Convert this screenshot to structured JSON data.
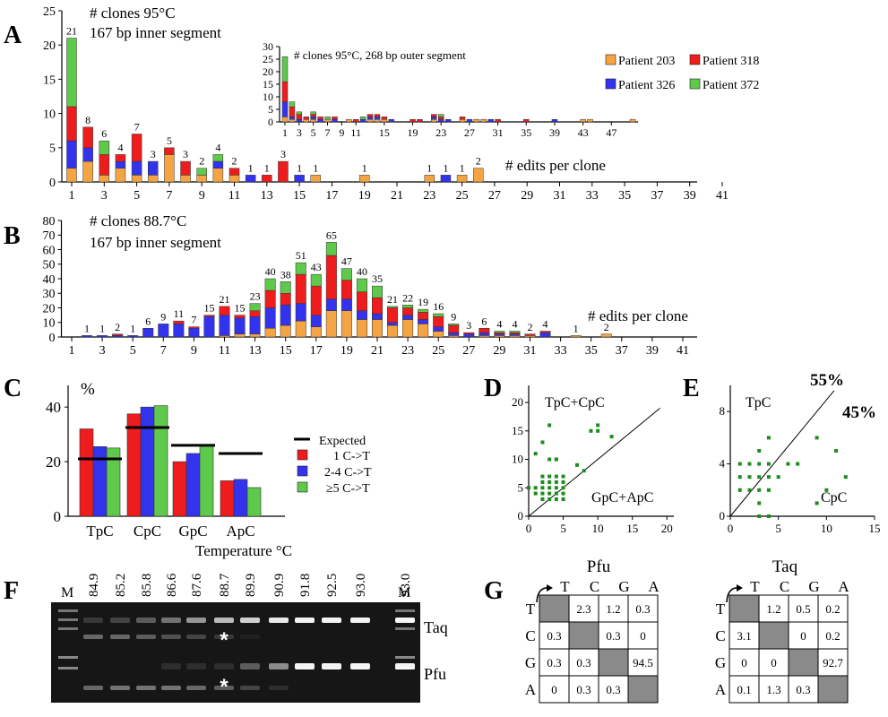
{
  "colors": {
    "p203": "#f5a443",
    "p318": "#ee1c1c",
    "p326": "#3333ee",
    "p372": "#5ec94a",
    "dot": "#1e8c1e",
    "gel_bg": "#161616"
  },
  "A": {
    "letter": "A",
    "title": [
      "# clones 95°C",
      "167 bp inner segment"
    ],
    "xlabel": "# edits per clone",
    "legend": [
      {
        "name": "Patient 203",
        "color": "#f5a443"
      },
      {
        "name": "Patient 318",
        "color": "#ee1c1c"
      },
      {
        "name": "Patient 326",
        "color": "#3333ee"
      },
      {
        "name": "Patient 372",
        "color": "#5ec94a"
      }
    ]
  },
  "A_inset": {
    "title": "# clones 95°C,  268 bp outer segment"
  },
  "B": {
    "letter": "B",
    "title": [
      "# clones 88.7°C",
      "167 bp inner segment"
    ],
    "xlabel": "# edits per clone"
  },
  "C": {
    "letter": "C",
    "ylabel": "%",
    "legend": [
      "Expected",
      "1 C->T",
      "2-4 C->T",
      "≥5 C->T"
    ]
  },
  "D": {
    "letter": "D",
    "label_top": "TpC+CpC",
    "label_bottom": "GpC+ApC"
  },
  "E": {
    "letter": "E",
    "label_top": "TpC",
    "label_bottom": "CpC",
    "pct_top": "55%",
    "pct_bottom": "45%"
  },
  "F": {
    "letter": "F",
    "title": "Temperature °C",
    "temps": [
      "84.9",
      "85.2",
      "85.8",
      "86.6",
      "87.6",
      "88.7",
      "89.9",
      "90.9",
      "91.8",
      "92.5",
      "93.0",
      "93.0"
    ],
    "marker": "M",
    "rows": [
      "Taq",
      "Pfu"
    ],
    "star": "*"
  },
  "G": {
    "letter": "G",
    "tables": [
      {
        "name": "Pfu",
        "cols": [
          "T",
          "C",
          "G",
          "A"
        ],
        "rows": [
          "T",
          "C",
          "G",
          "A"
        ],
        "cells": [
          [
            "",
            "2.3",
            "1.2",
            "0.3"
          ],
          [
            "0.3",
            "",
            "0.3",
            "0"
          ],
          [
            "0.3",
            "0.3",
            "",
            "94.5"
          ],
          [
            "0",
            "0.3",
            "0.3",
            ""
          ]
        ]
      },
      {
        "name": "Taq",
        "cols": [
          "T",
          "C",
          "G",
          "A"
        ],
        "rows": [
          "T",
          "C",
          "G",
          "A"
        ],
        "cells": [
          [
            "",
            "1.2",
            "0.5",
            "0.2"
          ],
          [
            "3.1",
            "",
            "0",
            "0.2"
          ],
          [
            "0",
            "0",
            "",
            "92.7"
          ],
          [
            "0.1",
            "1.3",
            "0.3",
            ""
          ]
        ]
      }
    ]
  },
  "chart_data": [
    {
      "type": "bar",
      "id": "A",
      "stacked": true,
      "x": [
        1,
        2,
        3,
        4,
        5,
        6,
        7,
        8,
        9,
        10,
        11,
        12,
        13,
        14,
        15,
        16,
        19,
        23,
        24,
        25,
        26
      ],
      "ylim": [
        0,
        25
      ],
      "yticks": [
        0,
        5,
        10,
        15,
        20,
        25
      ],
      "xticks": [
        1,
        3,
        5,
        7,
        9,
        11,
        13,
        15,
        17,
        19,
        21,
        23,
        25,
        27,
        29,
        31,
        33,
        35,
        37,
        39,
        41
      ],
      "totals": [
        21,
        8,
        6,
        4,
        7,
        3,
        5,
        3,
        2,
        4,
        2,
        1,
        1,
        3,
        1,
        1,
        1,
        1,
        1,
        1,
        2
      ],
      "series": [
        {
          "name": "Patient 203",
          "values": [
            2,
            3,
            1,
            2,
            1,
            1,
            4,
            1,
            1,
            2,
            1,
            0,
            0,
            0,
            0,
            1,
            1,
            1,
            0,
            1,
            2
          ]
        },
        {
          "name": "Patient 326",
          "values": [
            4,
            2,
            0,
            1,
            2,
            2,
            0,
            0,
            0,
            1,
            0,
            1,
            0,
            0,
            1,
            0,
            0,
            0,
            1,
            0,
            0
          ]
        },
        {
          "name": "Patient 318",
          "values": [
            5,
            3,
            3,
            1,
            4,
            0,
            1,
            2,
            0,
            0,
            1,
            0,
            1,
            3,
            0,
            0,
            0,
            0,
            0,
            0,
            0
          ]
        },
        {
          "name": "Patient 372",
          "values": [
            10,
            0,
            2,
            0,
            0,
            0,
            0,
            0,
            1,
            1,
            0,
            0,
            0,
            0,
            0,
            0,
            0,
            0,
            0,
            0,
            0
          ]
        }
      ]
    },
    {
      "type": "bar",
      "id": "A_inset",
      "stacked": true,
      "x": [
        1,
        2,
        3,
        4,
        5,
        6,
        7,
        8,
        10,
        11,
        12,
        13,
        14,
        15,
        16,
        19,
        20,
        22,
        23,
        24,
        26,
        27,
        28,
        29,
        30,
        31,
        35,
        39,
        43,
        44,
        50
      ],
      "ylim": [
        0,
        30
      ],
      "yticks": [
        0,
        5,
        10,
        15,
        20,
        25,
        30
      ],
      "xticks": [
        1,
        3,
        5,
        7,
        9,
        11,
        15,
        19,
        23,
        27,
        31,
        35,
        39,
        43,
        47
      ],
      "series": [
        {
          "name": "Patient 203",
          "values": [
            2,
            1,
            0,
            1,
            1,
            0,
            1,
            0,
            1,
            0,
            0,
            1,
            1,
            1,
            0,
            0,
            0,
            1,
            0,
            0,
            1,
            0,
            1,
            1,
            0,
            0,
            0,
            0,
            1,
            1,
            1
          ]
        },
        {
          "name": "Patient 326",
          "values": [
            6,
            1,
            1,
            0,
            1,
            1,
            0,
            1,
            0,
            0,
            1,
            1,
            1,
            0,
            1,
            0,
            0,
            1,
            1,
            1,
            0,
            1,
            0,
            0,
            1,
            0,
            0,
            1,
            0,
            0,
            0
          ]
        },
        {
          "name": "Patient 318",
          "values": [
            8,
            4,
            2,
            1,
            1,
            1,
            0,
            1,
            0,
            1,
            0,
            1,
            1,
            1,
            0,
            1,
            1,
            1,
            1,
            0,
            1,
            0,
            0,
            0,
            0,
            1,
            1,
            0,
            0,
            0,
            0
          ]
        },
        {
          "name": "Patient 372",
          "values": [
            10,
            2,
            1,
            0,
            1,
            0,
            1,
            0,
            0,
            0,
            1,
            0,
            0,
            0,
            0,
            0,
            0,
            0,
            1,
            0,
            0,
            0,
            0,
            0,
            0,
            0,
            0,
            0,
            0,
            0,
            0
          ]
        }
      ]
    },
    {
      "type": "bar",
      "id": "B",
      "stacked": true,
      "x": [
        2,
        3,
        4,
        5,
        6,
        7,
        8,
        9,
        10,
        11,
        12,
        13,
        14,
        15,
        16,
        17,
        18,
        19,
        20,
        21,
        22,
        23,
        24,
        25,
        26,
        27,
        28,
        29,
        30,
        31,
        32,
        34,
        36
      ],
      "ylim": [
        0,
        80
      ],
      "yticks": [
        0,
        10,
        20,
        30,
        40,
        50,
        60,
        70,
        80
      ],
      "xticks": [
        1,
        3,
        5,
        7,
        9,
        11,
        13,
        15,
        17,
        19,
        21,
        23,
        25,
        27,
        29,
        31,
        33,
        35,
        37,
        39,
        41
      ],
      "totals": [
        1,
        1,
        2,
        1,
        6,
        9,
        11,
        7,
        15,
        21,
        15,
        23,
        40,
        38,
        51,
        43,
        65,
        47,
        40,
        35,
        21,
        22,
        19,
        16,
        9,
        3,
        6,
        4,
        4,
        2,
        4,
        1,
        2
      ],
      "series": [
        {
          "name": "Patient 203",
          "values": [
            0,
            0,
            0,
            0,
            0,
            0,
            0,
            0,
            0,
            1,
            2,
            2,
            6,
            8,
            11,
            7,
            18,
            18,
            12,
            12,
            8,
            12,
            9,
            4,
            1,
            0,
            1,
            1,
            1,
            1,
            0,
            1,
            2
          ]
        },
        {
          "name": "Patient 326",
          "values": [
            1,
            1,
            1,
            1,
            6,
            9,
            9,
            6,
            14,
            14,
            11,
            12,
            14,
            14,
            12,
            8,
            8,
            8,
            6,
            4,
            2,
            3,
            3,
            3,
            2,
            2,
            2,
            1,
            1,
            0,
            3,
            0,
            0
          ]
        },
        {
          "name": "Patient 318",
          "values": [
            0,
            0,
            1,
            0,
            0,
            0,
            2,
            1,
            1,
            6,
            2,
            4,
            12,
            8,
            20,
            20,
            30,
            13,
            13,
            11,
            10,
            5,
            5,
            7,
            5,
            1,
            3,
            1,
            1,
            1,
            1,
            0,
            0
          ]
        },
        {
          "name": "Patient 372",
          "values": [
            0,
            0,
            0,
            0,
            0,
            0,
            0,
            0,
            0,
            0,
            0,
            5,
            8,
            8,
            8,
            8,
            9,
            8,
            9,
            8,
            1,
            2,
            2,
            2,
            1,
            0,
            0,
            1,
            1,
            0,
            0,
            0,
            0
          ]
        }
      ]
    },
    {
      "type": "bar",
      "id": "C",
      "categories": [
        "TpC",
        "CpC",
        "GpC",
        "ApC"
      ],
      "ylim": [
        0,
        45
      ],
      "yticks": [
        0,
        20,
        40
      ],
      "series": [
        {
          "name": "1 C->T",
          "values": [
            32,
            37.5,
            20,
            13
          ]
        },
        {
          "name": "2-4 C->T",
          "values": [
            25.5,
            40,
            23,
            13.5
          ]
        },
        {
          "name": "≥5 C->T",
          "values": [
            25,
            40.5,
            26,
            10.5
          ]
        }
      ],
      "expected": [
        21,
        32.5,
        26,
        23
      ]
    },
    {
      "type": "scatter",
      "id": "D",
      "xlim": [
        0,
        21
      ],
      "ylim": [
        0,
        23
      ],
      "xticks": [
        0,
        5,
        10,
        15,
        20
      ],
      "yticks": [
        0,
        5,
        10,
        15,
        20
      ],
      "points": [
        [
          0,
          5
        ],
        [
          1,
          4
        ],
        [
          1,
          5
        ],
        [
          2,
          3
        ],
        [
          2,
          4
        ],
        [
          2,
          5
        ],
        [
          2,
          6
        ],
        [
          2,
          7
        ],
        [
          3,
          3
        ],
        [
          3,
          4
        ],
        [
          3,
          5
        ],
        [
          3,
          6
        ],
        [
          3,
          7
        ],
        [
          3,
          16
        ],
        [
          4,
          3
        ],
        [
          4,
          4
        ],
        [
          4,
          5
        ],
        [
          4,
          6
        ],
        [
          4,
          7
        ],
        [
          4,
          10
        ],
        [
          5,
          3
        ],
        [
          5,
          4
        ],
        [
          5,
          5
        ],
        [
          5,
          6
        ],
        [
          5,
          7
        ],
        [
          2,
          13
        ],
        [
          3,
          10
        ],
        [
          4,
          10
        ],
        [
          7,
          9
        ],
        [
          8,
          8
        ],
        [
          9,
          15
        ],
        [
          10,
          16
        ],
        [
          10,
          15
        ],
        [
          12,
          14
        ],
        [
          1,
          11
        ]
      ],
      "diagonal": true
    },
    {
      "type": "scatter",
      "id": "E",
      "xlim": [
        0,
        15
      ],
      "ylim": [
        0,
        10
      ],
      "xticks": [
        0,
        5,
        10,
        15
      ],
      "yticks": [
        0,
        4,
        8
      ],
      "points": [
        [
          1,
          2
        ],
        [
          1,
          3
        ],
        [
          1,
          4
        ],
        [
          2,
          2
        ],
        [
          2,
          3
        ],
        [
          2,
          4
        ],
        [
          3,
          1
        ],
        [
          3,
          2
        ],
        [
          3,
          3
        ],
        [
          3,
          4
        ],
        [
          3,
          5
        ],
        [
          3,
          0
        ],
        [
          4,
          2
        ],
        [
          4,
          3
        ],
        [
          4,
          4
        ],
        [
          4,
          6
        ],
        [
          5,
          3
        ],
        [
          6,
          4
        ],
        [
          7,
          4
        ],
        [
          9,
          1
        ],
        [
          9,
          6
        ],
        [
          10,
          2
        ],
        [
          11,
          5
        ],
        [
          12,
          3
        ],
        [
          4,
          0
        ]
      ],
      "diagonal": true
    }
  ]
}
